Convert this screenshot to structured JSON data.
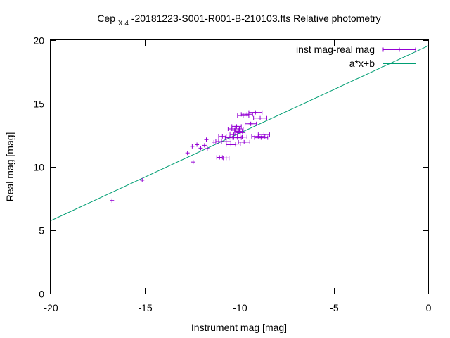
{
  "chart_data": {
    "type": "scatter",
    "title": {
      "prefix": "Cep",
      "subscript": "X 4",
      "suffix": " -20181223-S001-R001-B-210103.fts Relative photometry"
    },
    "xlabel": "Instrument mag [mag]",
    "ylabel": "Real mag [mag]",
    "xlim": [
      -20,
      0
    ],
    "ylim": [
      0,
      20
    ],
    "xticks": [
      -20,
      -15,
      -10,
      -5,
      0
    ],
    "xtick_labels": [
      "-20",
      "-15",
      "-10",
      "-5",
      "0"
    ],
    "yticks": [
      0,
      5,
      10,
      15,
      20
    ],
    "ytick_labels": [
      "0",
      "5",
      "10",
      "15",
      "20"
    ],
    "grid": false,
    "legend_position": "top-right",
    "series": [
      {
        "name": "inst mag-real mag",
        "kind": "errorbar-points",
        "color": "#9400d3",
        "points": [
          {
            "x": -16.75,
            "y": 7.35,
            "xerr": 0
          },
          {
            "x": -15.15,
            "y": 8.95,
            "xerr": 0
          },
          {
            "x": -12.75,
            "y": 11.1,
            "xerr": 0
          },
          {
            "x": -12.5,
            "y": 11.62,
            "xerr": 0
          },
          {
            "x": -12.45,
            "y": 10.38,
            "xerr": 0
          },
          {
            "x": -12.25,
            "y": 11.75,
            "xerr": 0
          },
          {
            "x": -12.05,
            "y": 11.48,
            "xerr": 0
          },
          {
            "x": -11.85,
            "y": 11.7,
            "xerr": 0
          },
          {
            "x": -11.75,
            "y": 12.15,
            "xerr": 0
          },
          {
            "x": -11.7,
            "y": 11.45,
            "xerr": 0
          },
          {
            "x": -11.35,
            "y": 11.95,
            "xerr": 0
          },
          {
            "x": -11.1,
            "y": 12.0,
            "xerr": 0.15
          },
          {
            "x": -11.05,
            "y": 10.75,
            "xerr": 0.15
          },
          {
            "x": -10.9,
            "y": 12.4,
            "xerr": 0.2
          },
          {
            "x": -10.7,
            "y": 10.7,
            "xerr": 0.15
          },
          {
            "x": -10.7,
            "y": 12.0,
            "xerr": 0.25
          },
          {
            "x": -10.55,
            "y": 12.3,
            "xerr": 0.2
          },
          {
            "x": -10.45,
            "y": 11.75,
            "xerr": 0.25
          },
          {
            "x": -10.4,
            "y": 13.0,
            "xerr": 0.2
          },
          {
            "x": -10.3,
            "y": 12.55,
            "xerr": 0.2
          },
          {
            "x": -10.25,
            "y": 12.9,
            "xerr": 0.2
          },
          {
            "x": -10.2,
            "y": 11.8,
            "xerr": 0.25
          },
          {
            "x": -10.15,
            "y": 13.2,
            "xerr": 0.25
          },
          {
            "x": -10.1,
            "y": 12.3,
            "xerr": 0.2
          },
          {
            "x": -10.05,
            "y": 12.8,
            "xerr": 0.2
          },
          {
            "x": -10.0,
            "y": 13.0,
            "xerr": 0.2
          },
          {
            "x": -9.95,
            "y": 12.7,
            "xerr": 0.25
          },
          {
            "x": -9.85,
            "y": 12.35,
            "xerr": 0.25
          },
          {
            "x": -9.8,
            "y": 14.05,
            "xerr": 0.3
          },
          {
            "x": -9.75,
            "y": 11.95,
            "xerr": 0.3
          },
          {
            "x": -9.6,
            "y": 14.15,
            "xerr": 0.3
          },
          {
            "x": -9.4,
            "y": 13.4,
            "xerr": 0.3
          },
          {
            "x": -9.15,
            "y": 14.3,
            "xerr": 0.35
          },
          {
            "x": -9.0,
            "y": 12.4,
            "xerr": 0.35
          },
          {
            "x": -8.9,
            "y": 13.85,
            "xerr": 0.35
          },
          {
            "x": -8.85,
            "y": 12.3,
            "xerr": 0.35
          },
          {
            "x": -8.7,
            "y": 12.55,
            "xerr": 0.3
          }
        ]
      },
      {
        "name": "a*x+b",
        "kind": "line",
        "color": "#009e73",
        "points": [
          {
            "x": -20,
            "y": 5.75
          },
          {
            "x": 0,
            "y": 19.55
          }
        ]
      }
    ]
  }
}
